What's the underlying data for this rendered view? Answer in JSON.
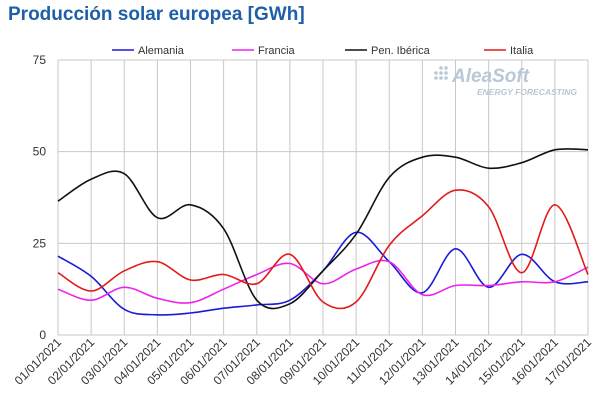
{
  "chart_data": {
    "type": "line",
    "title": "Producción solar europea [GWh]",
    "xlabel": "",
    "ylabel": "",
    "x": [
      "01/01/2021",
      "02/01/2021",
      "03/01/2021",
      "04/01/2021",
      "05/01/2021",
      "06/01/2021",
      "07/01/2021",
      "08/01/2021",
      "09/01/2021",
      "10/01/2021",
      "11/01/2021",
      "12/01/2021",
      "13/01/2021",
      "14/01/2021",
      "15/01/2021",
      "16/01/2021",
      "17/01/2021"
    ],
    "ylim": [
      0,
      75
    ],
    "yticks": [
      0,
      25,
      50,
      75
    ],
    "grid": true,
    "legend_position": "top",
    "series": [
      {
        "name": "Alemania",
        "color": "#1a1adb",
        "values": [
          21.5,
          16,
          7,
          5.5,
          6,
          7.3,
          8.2,
          9.5,
          17.5,
          28,
          20,
          11.5,
          23.5,
          13,
          22,
          14.5,
          14.5
        ]
      },
      {
        "name": "Francia",
        "color": "#ee22ee",
        "values": [
          12.5,
          9.5,
          13,
          10,
          8.8,
          12.5,
          16.5,
          19.5,
          14,
          18,
          20,
          11,
          13.5,
          13.5,
          14.5,
          14.5,
          18.5
        ]
      },
      {
        "name": "Pen. Ibérica",
        "color": "#111111",
        "values": [
          36.5,
          42.5,
          44,
          32,
          35.5,
          29,
          9.5,
          8.5,
          17.5,
          27.5,
          43,
          48.5,
          48.5,
          45.5,
          47,
          50.5,
          50.5
        ]
      },
      {
        "name": "Italia",
        "color": "#e31a1a",
        "values": [
          17,
          12,
          17.5,
          20,
          15,
          16.5,
          14,
          22,
          9,
          9,
          24.5,
          32.5,
          39.5,
          35,
          17,
          35.5,
          16.5
        ]
      }
    ]
  },
  "logo": {
    "name": "AleaSoft",
    "tagline": "ENERGY FORECASTING",
    "icon": "dot-grid-icon"
  }
}
